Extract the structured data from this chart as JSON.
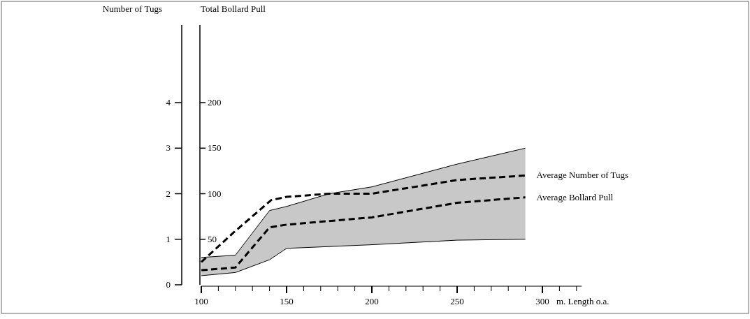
{
  "chart_data": {
    "type": "line",
    "xlabel": "m.  Length o.a.",
    "ylabel": "Number of Tugs",
    "y2label": "Total Bollard Pull",
    "xlim": [
      100,
      323
    ],
    "xticks": [
      100,
      {
        "value": 110,
        "label": null
      },
      {
        "value": 120,
        "label": null
      },
      {
        "value": 130,
        "label": null
      },
      {
        "value": 140,
        "label": null
      },
      150,
      {
        "value": 160,
        "label": null
      },
      {
        "value": 170,
        "label": null
      },
      {
        "value": 180,
        "label": null
      },
      {
        "value": 190,
        "label": null
      },
      200,
      {
        "value": 210,
        "label": null
      },
      {
        "value": 220,
        "label": null
      },
      {
        "value": 230,
        "label": null
      },
      {
        "value": 240,
        "label": null
      },
      250,
      {
        "value": 260,
        "label": null
      },
      {
        "value": 270,
        "label": null
      },
      {
        "value": 280,
        "label": null
      },
      {
        "value": 290,
        "label": null
      },
      300,
      {
        "value": 310,
        "label": null
      },
      {
        "value": 320,
        "label": null
      }
    ],
    "ylim": [
      0,
      5.7
    ],
    "yticks": [
      0,
      1,
      2,
      3,
      4
    ],
    "y2lim": [
      0,
      285
    ],
    "y2ticks": [
      50,
      100,
      150,
      200
    ],
    "series": [
      {
        "type": "line",
        "color": "#000000",
        "line_style": "solid",
        "x": [
          100,
          120,
          140,
          150,
          175,
          200,
          250,
          290
        ],
        "values": [
          0.6,
          0.65,
          1.63,
          1.72,
          2.0,
          2.15,
          2.65,
          3.0
        ],
        "lower": [
          0.2,
          0.27,
          0.55,
          0.8,
          0.84,
          0.88,
          0.98,
          1.0
        ],
        "upper": [
          0.6,
          0.65,
          1.63,
          1.72,
          2.0,
          2.15,
          2.65,
          3.0
        ]
      },
      {
        "type": "line",
        "color": "#000000",
        "line_style": "solid",
        "x": [
          100,
          120,
          140,
          150,
          175,
          200,
          250,
          290
        ],
        "values": [
          0.2,
          0.27,
          0.55,
          0.8,
          0.84,
          0.88,
          0.98,
          1.0
        ]
      },
      {
        "type": "line",
        "name": "Average Number of Tugs",
        "color": "#000000",
        "line_style": "dashed",
        "x": [
          100,
          119,
          141,
          150,
          175,
          200,
          250,
          290
        ],
        "values": [
          0.5,
          1.15,
          1.86,
          1.93,
          2.0,
          2.0,
          2.3,
          2.4
        ]
      },
      {
        "type": "line",
        "name": "Average Bollard Pull",
        "axis": "y2",
        "color": "#000000",
        "line_style": "dashed",
        "x": [
          100,
          120,
          140,
          150,
          200,
          250,
          290
        ],
        "values": [
          16,
          19,
          63,
          66,
          74,
          90,
          96
        ]
      }
    ]
  }
}
